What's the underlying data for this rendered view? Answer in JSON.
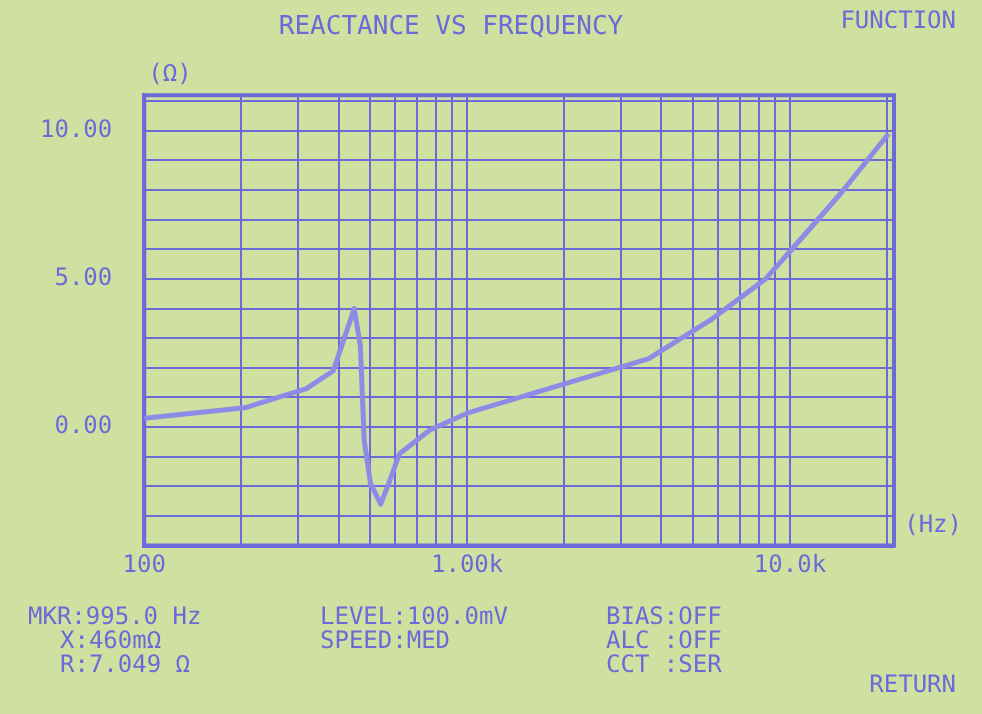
{
  "chart_data": {
    "type": "line",
    "title": "REACTANCE VS FREQUENCY",
    "xlabel": "(Hz)",
    "ylabel": "(Ω)",
    "log": "x",
    "grid": true,
    "legend": false,
    "marker": "none",
    "line_style": "solid",
    "x": [
      100,
      205,
      318,
      385,
      415,
      447,
      467,
      480,
      502,
      540,
      572,
      617,
      767,
      995,
      1853,
      3640,
      5650,
      8400,
      10140,
      14400,
      20200
    ],
    "series": [
      {
        "color": "#8c8ce6",
        "values": [
          0.3,
          0.65,
          1.3,
          1.9,
          2.95,
          4.0,
          2.75,
          -0.45,
          -1.9,
          -2.6,
          -1.9,
          -0.9,
          -0.1,
          0.46,
          1.35,
          2.3,
          3.6,
          5.0,
          6.0,
          7.9,
          9.9
        ]
      }
    ],
    "xlim": [
      100,
      21000
    ],
    "ylim": [
      -4,
      11.2
    ],
    "xticks": [
      {
        "value": 100,
        "label": "100"
      },
      {
        "value": 200,
        "label": null
      },
      {
        "value": 300,
        "label": null
      },
      {
        "value": 400,
        "label": null
      },
      {
        "value": 500,
        "label": null
      },
      {
        "value": 600,
        "label": null
      },
      {
        "value": 700,
        "label": null
      },
      {
        "value": 800,
        "label": null
      },
      {
        "value": 900,
        "label": null
      },
      {
        "value": 1000,
        "label": "1.00k"
      },
      {
        "value": 2000,
        "label": null
      },
      {
        "value": 3000,
        "label": null
      },
      {
        "value": 4000,
        "label": null
      },
      {
        "value": 5000,
        "label": null
      },
      {
        "value": 6000,
        "label": null
      },
      {
        "value": 7000,
        "label": null
      },
      {
        "value": 8000,
        "label": null
      },
      {
        "value": 9000,
        "label": null
      },
      {
        "value": 10000,
        "label": "10.0k"
      },
      {
        "value": 20000,
        "label": null
      }
    ],
    "yticks": [
      {
        "value": -4,
        "label": null
      },
      {
        "value": -3,
        "label": null
      },
      {
        "value": -2,
        "label": null
      },
      {
        "value": -1,
        "label": null
      },
      {
        "value": 0,
        "label": "0.00"
      },
      {
        "value": 1,
        "label": null
      },
      {
        "value": 2,
        "label": null
      },
      {
        "value": 3,
        "label": null
      },
      {
        "value": 4,
        "label": null
      },
      {
        "value": 5,
        "label": "5.00"
      },
      {
        "value": 6,
        "label": null
      },
      {
        "value": 7,
        "label": null
      },
      {
        "value": 8,
        "label": null
      },
      {
        "value": 9,
        "label": null
      },
      {
        "value": 10,
        "label": "10.00"
      },
      {
        "value": 11,
        "label": null
      }
    ],
    "annotations": [
      "FUNCTION",
      "MKR:995.0 Hz",
      "X:460mΩ",
      "R:7.049 Ω",
      "LEVEL:100.0mV",
      "SPEED:MED",
      "BIAS:OFF",
      "ALC :OFF",
      "CCT :SER",
      "RETURN"
    ]
  }
}
